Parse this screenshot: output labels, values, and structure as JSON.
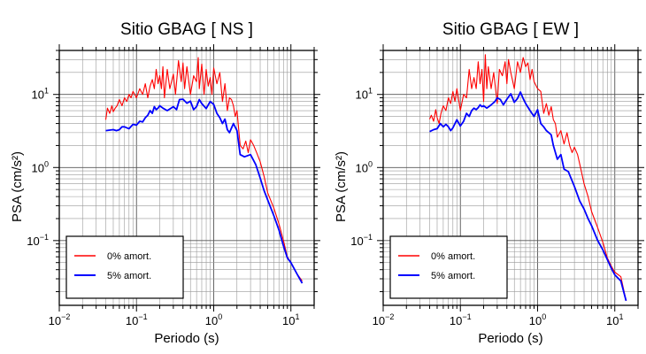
{
  "chart_data": [
    {
      "type": "line",
      "title": "Sitio GBAG [ NS ]",
      "xlabel": "Periodo (s)",
      "ylabel": "PSA (cm/s²)",
      "xscale": "log",
      "yscale": "log",
      "xlim": [
        0.01,
        20
      ],
      "ylim": [
        0.013,
        40
      ],
      "grid": true,
      "legend_position": "bottom-left",
      "x_ticks": [
        {
          "value": 0.01,
          "base": "10",
          "exp": "−2"
        },
        {
          "value": 0.1,
          "base": "10",
          "exp": "−1"
        },
        {
          "value": 1,
          "base": "10",
          "exp": "0"
        },
        {
          "value": 10,
          "base": "10",
          "exp": "1"
        }
      ],
      "y_ticks": [
        {
          "value": 0.1,
          "base": "10",
          "exp": "−1"
        },
        {
          "value": 1,
          "base": "10",
          "exp": "0"
        },
        {
          "value": 10,
          "base": "10",
          "exp": "1"
        }
      ],
      "series": [
        {
          "name": "0% amort.",
          "color": "#ff0000",
          "x": [
            0.04,
            0.042,
            0.045,
            0.048,
            0.05,
            0.053,
            0.056,
            0.06,
            0.065,
            0.07,
            0.075,
            0.08,
            0.085,
            0.09,
            0.1,
            0.11,
            0.12,
            0.13,
            0.14,
            0.15,
            0.16,
            0.17,
            0.18,
            0.19,
            0.2,
            0.21,
            0.22,
            0.23,
            0.25,
            0.27,
            0.3,
            0.32,
            0.35,
            0.38,
            0.4,
            0.42,
            0.45,
            0.5,
            0.55,
            0.6,
            0.63,
            0.65,
            0.7,
            0.75,
            0.8,
            0.85,
            0.9,
            0.95,
            1.0,
            1.1,
            1.2,
            1.3,
            1.4,
            1.5,
            1.6,
            1.7,
            1.8,
            1.9,
            2.0,
            2.2,
            2.4,
            2.6,
            2.8,
            3.0,
            3.3,
            3.6,
            4.0,
            4.5,
            5.0,
            6.0,
            7.0,
            8.0,
            9.0,
            10.0,
            12.0,
            14.0
          ],
          "y": [
            4.5,
            6.5,
            5.5,
            7.0,
            5.8,
            6.5,
            7.0,
            8.5,
            7.0,
            9.0,
            8.0,
            10.0,
            9.0,
            11.0,
            9.0,
            12.0,
            10.0,
            14.0,
            9.0,
            13.0,
            16.0,
            12.0,
            22.0,
            14.0,
            18.0,
            12.0,
            24.0,
            9.0,
            22.0,
            12.0,
            19.0,
            10.0,
            29.0,
            15.0,
            27.0,
            12.0,
            24.0,
            10.0,
            18.0,
            15.0,
            32.0,
            12.0,
            26.0,
            10.0,
            22.0,
            13.0,
            17.0,
            10.0,
            23.0,
            14.0,
            20.0,
            8.0,
            14.0,
            6.0,
            9.0,
            8.5,
            7.0,
            5.0,
            6.0,
            2.0,
            1.8,
            2.3,
            1.6,
            2.4,
            2.0,
            1.6,
            1.2,
            0.75,
            0.45,
            0.28,
            0.17,
            0.1,
            0.06,
            0.05,
            0.035,
            0.028
          ]
        },
        {
          "name": "5% amort.",
          "color": "#0000ff",
          "x": [
            0.04,
            0.045,
            0.05,
            0.055,
            0.06,
            0.065,
            0.07,
            0.075,
            0.08,
            0.09,
            0.1,
            0.11,
            0.12,
            0.13,
            0.14,
            0.15,
            0.16,
            0.17,
            0.18,
            0.19,
            0.2,
            0.22,
            0.25,
            0.28,
            0.3,
            0.33,
            0.36,
            0.4,
            0.45,
            0.5,
            0.55,
            0.6,
            0.65,
            0.7,
            0.8,
            0.9,
            1.0,
            1.1,
            1.2,
            1.3,
            1.4,
            1.5,
            1.6,
            1.8,
            2.0,
            2.2,
            2.5,
            3.0,
            3.5,
            4.0,
            4.5,
            5.0,
            6.0,
            7.0,
            8.0,
            9.0,
            10.0,
            12.0,
            14.0
          ],
          "y": [
            3.2,
            3.25,
            3.3,
            3.2,
            3.3,
            3.6,
            3.6,
            3.5,
            3.4,
            3.9,
            3.8,
            4.3,
            4.2,
            4.8,
            5.2,
            6.0,
            5.5,
            6.8,
            6.2,
            6.5,
            7.0,
            6.5,
            6.0,
            6.5,
            6.8,
            6.2,
            8.5,
            8.6,
            7.6,
            8.1,
            6.2,
            6.8,
            8.5,
            7.5,
            6.4,
            8.0,
            7.3,
            5.5,
            4.8,
            4.0,
            4.6,
            3.3,
            3.0,
            4.0,
            3.2,
            1.5,
            1.4,
            1.5,
            1.1,
            0.72,
            0.48,
            0.36,
            0.22,
            0.14,
            0.085,
            0.058,
            0.05,
            0.035,
            0.026
          ]
        }
      ]
    },
    {
      "type": "line",
      "title": "Sitio GBAG [ EW ]",
      "xlabel": "Periodo (s)",
      "ylabel": "PSA (cm/s²)",
      "xscale": "log",
      "yscale": "log",
      "xlim": [
        0.01,
        20
      ],
      "ylim": [
        0.013,
        40
      ],
      "grid": true,
      "legend_position": "bottom-left",
      "x_ticks": [
        {
          "value": 0.01,
          "base": "10",
          "exp": "−2"
        },
        {
          "value": 0.1,
          "base": "10",
          "exp": "−1"
        },
        {
          "value": 1,
          "base": "10",
          "exp": "0"
        },
        {
          "value": 10,
          "base": "10",
          "exp": "1"
        }
      ],
      "y_ticks": [
        {
          "value": 0.1,
          "base": "10",
          "exp": "−1"
        },
        {
          "value": 1,
          "base": "10",
          "exp": "0"
        },
        {
          "value": 10,
          "base": "10",
          "exp": "1"
        }
      ],
      "series": [
        {
          "name": "0% amort.",
          "color": "#ff0000",
          "x": [
            0.04,
            0.042,
            0.045,
            0.048,
            0.05,
            0.053,
            0.056,
            0.06,
            0.065,
            0.07,
            0.075,
            0.08,
            0.085,
            0.09,
            0.1,
            0.11,
            0.12,
            0.13,
            0.14,
            0.15,
            0.16,
            0.17,
            0.18,
            0.19,
            0.2,
            0.21,
            0.22,
            0.23,
            0.25,
            0.27,
            0.3,
            0.32,
            0.35,
            0.38,
            0.4,
            0.42,
            0.45,
            0.5,
            0.55,
            0.6,
            0.65,
            0.7,
            0.75,
            0.8,
            0.85,
            0.9,
            1.0,
            1.1,
            1.2,
            1.3,
            1.4,
            1.5,
            1.6,
            1.7,
            1.8,
            2.0,
            2.2,
            2.4,
            2.6,
            2.8,
            3.0,
            3.3,
            3.6,
            4.0,
            4.5,
            5.0,
            6.0,
            7.0,
            8.0,
            9.0,
            10.0,
            12.0,
            14.0
          ],
          "y": [
            4.6,
            5.2,
            4.3,
            6.2,
            4.8,
            4.0,
            5.5,
            7.0,
            6.0,
            9.0,
            7.5,
            11.0,
            8.0,
            12.0,
            6.0,
            10.0,
            9.0,
            22.0,
            12.0,
            17.0,
            12.0,
            28.0,
            14.0,
            22.0,
            8.0,
            35.0,
            12.0,
            24.0,
            12.0,
            20.0,
            7.5,
            22.0,
            18.0,
            28.0,
            14.0,
            30.0,
            20.0,
            12.0,
            28.0,
            20.0,
            32.0,
            24.0,
            27.0,
            16.0,
            22.0,
            15.0,
            12.0,
            11.0,
            5.5,
            7.5,
            5.2,
            6.8,
            4.5,
            4.0,
            2.6,
            3.2,
            2.1,
            3.0,
            2.0,
            1.6,
            1.9,
            1.5,
            1.0,
            0.6,
            0.4,
            0.25,
            0.15,
            0.095,
            0.058,
            0.045,
            0.037,
            0.032,
            0.015
          ]
        },
        {
          "name": "5% amort.",
          "color": "#0000ff",
          "x": [
            0.04,
            0.045,
            0.05,
            0.055,
            0.06,
            0.065,
            0.07,
            0.075,
            0.08,
            0.09,
            0.1,
            0.11,
            0.12,
            0.13,
            0.14,
            0.15,
            0.16,
            0.17,
            0.18,
            0.19,
            0.2,
            0.22,
            0.25,
            0.28,
            0.3,
            0.33,
            0.36,
            0.4,
            0.45,
            0.5,
            0.55,
            0.6,
            0.65,
            0.7,
            0.8,
            0.9,
            1.0,
            1.1,
            1.2,
            1.3,
            1.4,
            1.5,
            1.6,
            1.8,
            2.0,
            2.2,
            2.5,
            3.0,
            3.5,
            4.0,
            4.5,
            5.0,
            6.0,
            7.0,
            8.0,
            9.0,
            10.0,
            12.0,
            14.0
          ],
          "y": [
            3.1,
            3.3,
            3.4,
            4.0,
            3.6,
            3.9,
            3.6,
            3.2,
            3.5,
            4.5,
            3.7,
            4.3,
            5.5,
            5.0,
            6.0,
            6.5,
            6.2,
            6.6,
            7.2,
            6.8,
            7.0,
            6.5,
            7.2,
            8.0,
            9.0,
            8.5,
            7.2,
            8.6,
            10.2,
            7.8,
            8.8,
            10.8,
            8.8,
            7.5,
            6.0,
            5.0,
            6.2,
            4.0,
            3.6,
            3.2,
            3.0,
            2.8,
            2.0,
            1.3,
            1.5,
            0.95,
            0.88,
            0.55,
            0.35,
            0.27,
            0.2,
            0.16,
            0.1,
            0.075,
            0.055,
            0.042,
            0.034,
            0.028,
            0.015
          ]
        }
      ]
    }
  ]
}
